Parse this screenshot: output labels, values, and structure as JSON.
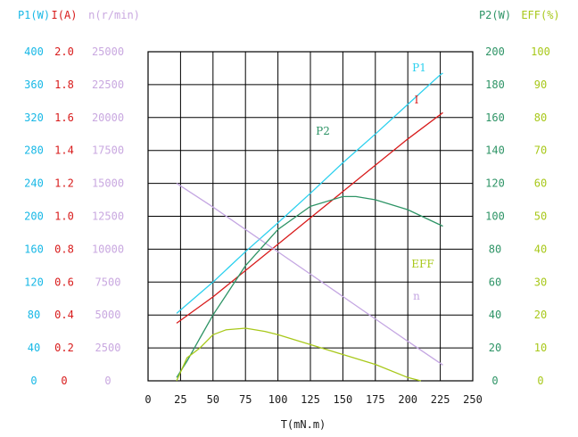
{
  "chart_data": {
    "type": "line",
    "title": "",
    "xlabel": "T(mN.m)",
    "xlim": [
      0,
      250
    ],
    "x_ticks": [
      0,
      25,
      50,
      75,
      100,
      125,
      150,
      175,
      200,
      225,
      250
    ],
    "grid": true,
    "left_axes": [
      {
        "id": "P1",
        "label": "P1(W)",
        "color": "#18b8e6",
        "ticks": [
          0,
          40,
          80,
          120,
          160,
          200,
          240,
          280,
          320,
          360,
          400
        ],
        "ylim": [
          0,
          400
        ]
      },
      {
        "id": "I",
        "label": "I(A)",
        "color": "#d81b1b",
        "ticks": [
          "0",
          "0.2",
          "0.4",
          "0.6",
          "0.8",
          "1.0",
          "1.2",
          "1.4",
          "1.6",
          "1.8",
          "2.0"
        ],
        "ylim": [
          0,
          2.0
        ]
      },
      {
        "id": "n",
        "label": "n(r/min)",
        "color": "#c9a8e0",
        "ticks": [
          0,
          2500,
          5000,
          7500,
          10000,
          12500,
          15000,
          17500,
          20000,
          22500,
          25000
        ],
        "ylim": [
          0,
          25000
        ]
      }
    ],
    "right_axes": [
      {
        "id": "P2",
        "label": "P2(W)",
        "color": "#2e9466",
        "ticks": [
          0,
          20,
          40,
          60,
          80,
          100,
          120,
          140,
          160,
          180,
          200
        ],
        "ylim": [
          0,
          200
        ]
      },
      {
        "id": "EFF",
        "label": "EFF(%)",
        "color": "#a8c81a",
        "ticks": [
          0,
          10,
          20,
          30,
          40,
          50,
          60,
          70,
          80,
          90,
          100
        ],
        "ylim": [
          0,
          100
        ]
      }
    ],
    "series": [
      {
        "name": "P1",
        "axis": "P1",
        "color": "#2bd0ee",
        "points": [
          [
            22,
            82
          ],
          [
            50,
            120
          ],
          [
            75,
            157
          ],
          [
            100,
            192
          ],
          [
            125,
            228
          ],
          [
            150,
            265
          ],
          [
            175,
            300
          ],
          [
            200,
            336
          ],
          [
            225,
            372
          ],
          [
            227,
            374
          ]
        ]
      },
      {
        "name": "I",
        "axis": "I",
        "color": "#d81b1b",
        "points": [
          [
            22,
            0.35
          ],
          [
            50,
            0.51
          ],
          [
            75,
            0.67
          ],
          [
            100,
            0.83
          ],
          [
            125,
            0.99
          ],
          [
            150,
            1.15
          ],
          [
            175,
            1.31
          ],
          [
            200,
            1.47
          ],
          [
            227,
            1.63
          ]
        ]
      },
      {
        "name": "n",
        "axis": "n",
        "color": "#c4a6e2",
        "points": [
          [
            22,
            15000
          ],
          [
            50,
            13200
          ],
          [
            75,
            11500
          ],
          [
            100,
            9800
          ],
          [
            125,
            8100
          ],
          [
            150,
            6400
          ],
          [
            175,
            4700
          ],
          [
            200,
            3000
          ],
          [
            227,
            1200
          ]
        ]
      },
      {
        "name": "P2",
        "axis": "P2",
        "color": "#2e9466",
        "points": [
          [
            22,
            2
          ],
          [
            30,
            12
          ],
          [
            40,
            26
          ],
          [
            50,
            40
          ],
          [
            60,
            52
          ],
          [
            75,
            70
          ],
          [
            100,
            92
          ],
          [
            125,
            106
          ],
          [
            150,
            112
          ],
          [
            160,
            112
          ],
          [
            175,
            110
          ],
          [
            200,
            104
          ],
          [
            227,
            94
          ]
        ]
      },
      {
        "name": "EFF",
        "axis": "EFF",
        "color": "#a8c81a",
        "points": [
          [
            22,
            0
          ],
          [
            30,
            7
          ],
          [
            40,
            10
          ],
          [
            50,
            14
          ],
          [
            60,
            15.5
          ],
          [
            75,
            16
          ],
          [
            90,
            15
          ],
          [
            100,
            14
          ],
          [
            125,
            11
          ],
          [
            150,
            8
          ],
          [
            175,
            5
          ],
          [
            200,
            1
          ],
          [
            210,
            0
          ]
        ]
      }
    ]
  }
}
